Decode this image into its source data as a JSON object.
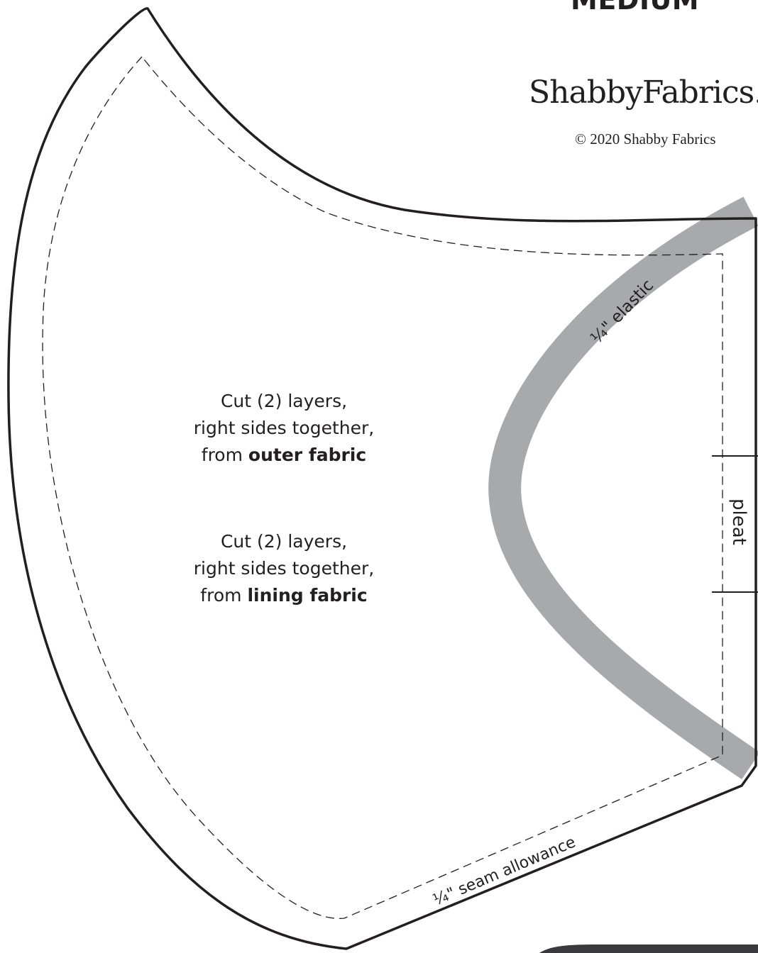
{
  "size_label": "MEDIUM",
  "brand": {
    "logo_text": "ShabbyFabrics.c",
    "copyright": "© 2020 Shabby Fabrics"
  },
  "instructions": [
    {
      "line1": "Cut (2) layers,",
      "line2": "right sides together,",
      "line3_prefix": "from ",
      "fabric": "outer fabric"
    },
    {
      "line1": "Cut (2) layers,",
      "line2": "right sides together,",
      "line3_prefix": "from ",
      "fabric": "lining fabric"
    }
  ],
  "labels": {
    "elastic": "¼\" elastic",
    "pleat": "pleat",
    "seam_allowance": "¼\" seam allowance"
  },
  "colors": {
    "outline": "#231f20",
    "elastic_band": "#a7a9ac",
    "background": "#ffffff"
  }
}
